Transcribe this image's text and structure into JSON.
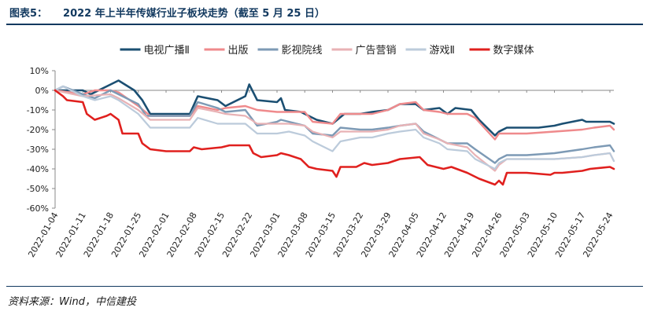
{
  "header": {
    "figure_label": "图表5：",
    "title": "2022 年上半年传媒行业子板块走势（截至 5 月 25 日）"
  },
  "footer": {
    "source": "资料来源：Wind，中信建投"
  },
  "chart_data": {
    "type": "line",
    "x_tick_labels": [
      "2022-01-04",
      "2022-01-11",
      "2022-01-18",
      "2022-01-25",
      "2022-02-01",
      "2022-02-08",
      "2022-02-15",
      "2022-02-22",
      "2022-03-01",
      "2022-03-08",
      "2022-03-15",
      "2022-03-22",
      "2022-03-29",
      "2022-04-05",
      "2022-04-12",
      "2022-04-19",
      "2022-04-26",
      "2022-05-03",
      "2022-05-10",
      "2022-05-17",
      "2022-05-24"
    ],
    "y_ticks": [
      10,
      0,
      -10,
      -20,
      -30,
      -40,
      -50,
      -60
    ],
    "y_tick_labels": [
      "10%",
      "0%",
      "-10%",
      "-20%",
      "-30%",
      "-40%",
      "-50%",
      "-60%"
    ],
    "ylim": [
      -60,
      10
    ],
    "y_unit": "%",
    "legend_position": "top",
    "grid": false,
    "series": [
      {
        "name": "电视广播Ⅱ",
        "color": "#1b4f72",
        "width": 2.6,
        "points": [
          [
            "2022-01-04",
            0
          ],
          [
            "2022-01-06",
            0
          ],
          [
            "2022-01-11",
            0
          ],
          [
            "2022-01-13",
            -2
          ],
          [
            "2022-01-17",
            2
          ],
          [
            "2022-01-20",
            5
          ],
          [
            "2022-01-24",
            0
          ],
          [
            "2022-01-26",
            -5
          ],
          [
            "2022-01-28",
            -12
          ],
          [
            "2022-02-01",
            -12
          ],
          [
            "2022-02-07",
            -12
          ],
          [
            "2022-02-09",
            -3
          ],
          [
            "2022-02-14",
            -5
          ],
          [
            "2022-02-16",
            -8
          ],
          [
            "2022-02-21",
            -3
          ],
          [
            "2022-02-22",
            3
          ],
          [
            "2022-02-24",
            -5
          ],
          [
            "2022-03-01",
            -6
          ],
          [
            "2022-03-02",
            -4
          ],
          [
            "2022-03-03",
            -10
          ],
          [
            "2022-03-07",
            -11
          ],
          [
            "2022-03-11",
            -15
          ],
          [
            "2022-03-15",
            -17
          ],
          [
            "2022-03-18",
            -12
          ],
          [
            "2022-03-22",
            -12
          ],
          [
            "2022-03-25",
            -11
          ],
          [
            "2022-03-29",
            -10
          ],
          [
            "2022-04-01",
            -7
          ],
          [
            "2022-04-05",
            -7
          ],
          [
            "2022-04-07",
            -10
          ],
          [
            "2022-04-11",
            -9
          ],
          [
            "2022-04-13",
            -12
          ],
          [
            "2022-04-15",
            -9
          ],
          [
            "2022-04-19",
            -10
          ],
          [
            "2022-04-21",
            -15
          ],
          [
            "2022-04-25",
            -23
          ],
          [
            "2022-04-26",
            -21
          ],
          [
            "2022-04-28",
            -19
          ],
          [
            "2022-05-03",
            -19
          ],
          [
            "2022-05-06",
            -19
          ],
          [
            "2022-05-10",
            -18
          ],
          [
            "2022-05-12",
            -17
          ],
          [
            "2022-05-17",
            -15
          ],
          [
            "2022-05-18",
            -16
          ],
          [
            "2022-05-20",
            -16
          ],
          [
            "2022-05-24",
            -16
          ],
          [
            "2022-05-25",
            -17
          ]
        ]
      },
      {
        "name": "出版",
        "color": "#ef8a8c",
        "width": 2.4,
        "points": [
          [
            "2022-01-04",
            0
          ],
          [
            "2022-01-11",
            -2
          ],
          [
            "2022-01-14",
            0
          ],
          [
            "2022-01-18",
            0
          ],
          [
            "2022-01-20",
            -1
          ],
          [
            "2022-01-25",
            -8
          ],
          [
            "2022-01-28",
            -13
          ],
          [
            "2022-02-01",
            -13
          ],
          [
            "2022-02-07",
            -13
          ],
          [
            "2022-02-09",
            -8
          ],
          [
            "2022-02-14",
            -10
          ],
          [
            "2022-02-16",
            -9
          ],
          [
            "2022-02-21",
            -8
          ],
          [
            "2022-02-24",
            -10
          ],
          [
            "2022-03-01",
            -11
          ],
          [
            "2022-03-03",
            -11
          ],
          [
            "2022-03-08",
            -11
          ],
          [
            "2022-03-10",
            -16
          ],
          [
            "2022-03-15",
            -17
          ],
          [
            "2022-03-17",
            -12
          ],
          [
            "2022-03-22",
            -12
          ],
          [
            "2022-03-25",
            -12
          ],
          [
            "2022-03-29",
            -10
          ],
          [
            "2022-04-01",
            -7
          ],
          [
            "2022-04-05",
            -6
          ],
          [
            "2022-04-07",
            -10
          ],
          [
            "2022-04-11",
            -11
          ],
          [
            "2022-04-13",
            -12
          ],
          [
            "2022-04-18",
            -12
          ],
          [
            "2022-04-20",
            -14
          ],
          [
            "2022-04-25",
            -25
          ],
          [
            "2022-04-26",
            -22
          ],
          [
            "2022-04-28",
            -22
          ],
          [
            "2022-05-03",
            -22
          ],
          [
            "2022-05-10",
            -21
          ],
          [
            "2022-05-17",
            -20
          ],
          [
            "2022-05-20",
            -19
          ],
          [
            "2022-05-24",
            -18
          ],
          [
            "2022-05-25",
            -20
          ]
        ]
      },
      {
        "name": "影视院线",
        "color": "#7d9ab5",
        "width": 2.4,
        "points": [
          [
            "2022-01-04",
            0
          ],
          [
            "2022-01-06",
            2
          ],
          [
            "2022-01-11",
            -2
          ],
          [
            "2022-01-14",
            -4
          ],
          [
            "2022-01-18",
            0
          ],
          [
            "2022-01-20",
            -2
          ],
          [
            "2022-01-25",
            -7
          ],
          [
            "2022-01-27",
            -13
          ],
          [
            "2022-02-01",
            -13
          ],
          [
            "2022-02-07",
            -13
          ],
          [
            "2022-02-09",
            -6
          ],
          [
            "2022-02-14",
            -9
          ],
          [
            "2022-02-16",
            -11
          ],
          [
            "2022-02-21",
            -10
          ],
          [
            "2022-02-24",
            -18
          ],
          [
            "2022-03-01",
            -16
          ],
          [
            "2022-03-02",
            -15
          ],
          [
            "2022-03-04",
            -16
          ],
          [
            "2022-03-08",
            -18
          ],
          [
            "2022-03-10",
            -22
          ],
          [
            "2022-03-15",
            -23
          ],
          [
            "2022-03-17",
            -19
          ],
          [
            "2022-03-22",
            -20
          ],
          [
            "2022-03-25",
            -20
          ],
          [
            "2022-03-29",
            -19
          ],
          [
            "2022-04-01",
            -18
          ],
          [
            "2022-04-05",
            -17
          ],
          [
            "2022-04-07",
            -21
          ],
          [
            "2022-04-11",
            -25
          ],
          [
            "2022-04-13",
            -27
          ],
          [
            "2022-04-18",
            -27
          ],
          [
            "2022-04-20",
            -30
          ],
          [
            "2022-04-25",
            -37
          ],
          [
            "2022-04-26",
            -35
          ],
          [
            "2022-04-28",
            -33
          ],
          [
            "2022-05-03",
            -33
          ],
          [
            "2022-05-10",
            -32
          ],
          [
            "2022-05-17",
            -30
          ],
          [
            "2022-05-20",
            -29
          ],
          [
            "2022-05-24",
            -28
          ],
          [
            "2022-05-25",
            -31
          ]
        ]
      },
      {
        "name": "广告营销",
        "color": "#e8b2b5",
        "width": 2.2,
        "points": [
          [
            "2022-01-04",
            0
          ],
          [
            "2022-01-11",
            -3
          ],
          [
            "2022-01-18",
            -2
          ],
          [
            "2022-01-20",
            -4
          ],
          [
            "2022-01-25",
            -10
          ],
          [
            "2022-01-28",
            -15
          ],
          [
            "2022-02-01",
            -15
          ],
          [
            "2022-02-07",
            -15
          ],
          [
            "2022-02-09",
            -9
          ],
          [
            "2022-02-14",
            -11
          ],
          [
            "2022-02-16",
            -12
          ],
          [
            "2022-02-21",
            -13
          ],
          [
            "2022-02-24",
            -17
          ],
          [
            "2022-03-01",
            -17
          ],
          [
            "2022-03-04",
            -17
          ],
          [
            "2022-03-08",
            -18
          ],
          [
            "2022-03-10",
            -21
          ],
          [
            "2022-03-15",
            -24
          ],
          [
            "2022-03-17",
            -21
          ],
          [
            "2022-03-22",
            -21
          ],
          [
            "2022-03-25",
            -21
          ],
          [
            "2022-03-29",
            -20
          ],
          [
            "2022-04-01",
            -18
          ],
          [
            "2022-04-05",
            -17
          ],
          [
            "2022-04-07",
            -22
          ],
          [
            "2022-04-11",
            -25
          ],
          [
            "2022-04-13",
            -27
          ],
          [
            "2022-04-18",
            -29
          ],
          [
            "2022-04-20",
            -33
          ],
          [
            "2022-04-25",
            -41
          ],
          [
            "2022-04-26",
            -38
          ],
          [
            "2022-04-28",
            -35
          ],
          [
            "2022-05-03",
            -35
          ],
          [
            "2022-05-10",
            -35
          ],
          [
            "2022-05-17",
            -34
          ],
          [
            "2022-05-20",
            -33
          ],
          [
            "2022-05-24",
            -32
          ],
          [
            "2022-05-25",
            -36
          ]
        ]
      },
      {
        "name": "游戏Ⅱ",
        "color": "#bccbdb",
        "width": 2.2,
        "points": [
          [
            "2022-01-04",
            0
          ],
          [
            "2022-01-06",
            2
          ],
          [
            "2022-01-11",
            -3
          ],
          [
            "2022-01-14",
            -5
          ],
          [
            "2022-01-18",
            -3
          ],
          [
            "2022-01-20",
            -5
          ],
          [
            "2022-01-25",
            -12
          ],
          [
            "2022-01-28",
            -19
          ],
          [
            "2022-02-01",
            -19
          ],
          [
            "2022-02-07",
            -19
          ],
          [
            "2022-02-09",
            -14
          ],
          [
            "2022-02-14",
            -17
          ],
          [
            "2022-02-16",
            -17
          ],
          [
            "2022-02-21",
            -17
          ],
          [
            "2022-02-24",
            -22
          ],
          [
            "2022-03-01",
            -22
          ],
          [
            "2022-03-04",
            -21
          ],
          [
            "2022-03-08",
            -23
          ],
          [
            "2022-03-10",
            -26
          ],
          [
            "2022-03-15",
            -31
          ],
          [
            "2022-03-17",
            -26
          ],
          [
            "2022-03-22",
            -24
          ],
          [
            "2022-03-25",
            -24
          ],
          [
            "2022-03-29",
            -22
          ],
          [
            "2022-04-01",
            -21
          ],
          [
            "2022-04-05",
            -20
          ],
          [
            "2022-04-07",
            -24
          ],
          [
            "2022-04-11",
            -27
          ],
          [
            "2022-04-13",
            -30
          ],
          [
            "2022-04-18",
            -31
          ],
          [
            "2022-04-20",
            -35
          ],
          [
            "2022-04-25",
            -40
          ],
          [
            "2022-04-26",
            -37
          ],
          [
            "2022-04-28",
            -35
          ],
          [
            "2022-05-03",
            -35
          ],
          [
            "2022-05-10",
            -35
          ],
          [
            "2022-05-17",
            -34
          ],
          [
            "2022-05-20",
            -33
          ],
          [
            "2022-05-24",
            -32
          ],
          [
            "2022-05-25",
            -36
          ]
        ]
      },
      {
        "name": "数字媒体",
        "color": "#e0201e",
        "width": 2.6,
        "points": [
          [
            "2022-01-04",
            0
          ],
          [
            "2022-01-06",
            -3
          ],
          [
            "2022-01-07",
            -5
          ],
          [
            "2022-01-11",
            -6
          ],
          [
            "2022-01-12",
            -12
          ],
          [
            "2022-01-14",
            -15
          ],
          [
            "2022-01-17",
            -13
          ],
          [
            "2022-01-18",
            -12
          ],
          [
            "2022-01-20",
            -15
          ],
          [
            "2022-01-21",
            -22
          ],
          [
            "2022-01-25",
            -22
          ],
          [
            "2022-01-26",
            -27
          ],
          [
            "2022-01-28",
            -30
          ],
          [
            "2022-02-01",
            -31
          ],
          [
            "2022-02-07",
            -31
          ],
          [
            "2022-02-08",
            -29
          ],
          [
            "2022-02-10",
            -30
          ],
          [
            "2022-02-15",
            -29
          ],
          [
            "2022-02-17",
            -28
          ],
          [
            "2022-02-22",
            -28
          ],
          [
            "2022-02-23",
            -32
          ],
          [
            "2022-02-25",
            -34
          ],
          [
            "2022-03-01",
            -33
          ],
          [
            "2022-03-02",
            -32
          ],
          [
            "2022-03-04",
            -33
          ],
          [
            "2022-03-07",
            -35
          ],
          [
            "2022-03-09",
            -39
          ],
          [
            "2022-03-11",
            -40
          ],
          [
            "2022-03-15",
            -41
          ],
          [
            "2022-03-16",
            -44
          ],
          [
            "2022-03-17",
            -39
          ],
          [
            "2022-03-21",
            -39
          ],
          [
            "2022-03-23",
            -37
          ],
          [
            "2022-03-25",
            -38
          ],
          [
            "2022-03-29",
            -37
          ],
          [
            "2022-04-01",
            -35
          ],
          [
            "2022-04-06",
            -34
          ],
          [
            "2022-04-08",
            -38
          ],
          [
            "2022-04-12",
            -40
          ],
          [
            "2022-04-14",
            -39
          ],
          [
            "2022-04-18",
            -42
          ],
          [
            "2022-04-21",
            -45
          ],
          [
            "2022-04-25",
            -48
          ],
          [
            "2022-04-26",
            -46
          ],
          [
            "2022-04-27",
            -48
          ],
          [
            "2022-04-28",
            -42
          ],
          [
            "2022-05-03",
            -42
          ],
          [
            "2022-05-09",
            -43
          ],
          [
            "2022-05-10",
            -42
          ],
          [
            "2022-05-12",
            -42
          ],
          [
            "2022-05-17",
            -41
          ],
          [
            "2022-05-19",
            -40
          ],
          [
            "2022-05-24",
            -39
          ],
          [
            "2022-05-25",
            -40
          ]
        ]
      }
    ]
  }
}
